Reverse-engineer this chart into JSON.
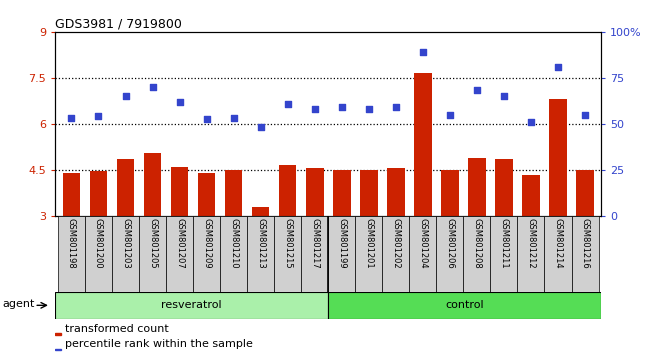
{
  "title": "GDS3981 / 7919800",
  "samples": [
    "GSM801198",
    "GSM801200",
    "GSM801203",
    "GSM801205",
    "GSM801207",
    "GSM801209",
    "GSM801210",
    "GSM801213",
    "GSM801215",
    "GSM801217",
    "GSM801199",
    "GSM801201",
    "GSM801202",
    "GSM801204",
    "GSM801206",
    "GSM801208",
    "GSM801211",
    "GSM801212",
    "GSM801214",
    "GSM801216"
  ],
  "bar_values": [
    4.4,
    4.45,
    4.85,
    5.05,
    4.6,
    4.4,
    4.5,
    3.3,
    4.65,
    4.55,
    4.5,
    4.5,
    4.55,
    7.65,
    4.5,
    4.9,
    4.85,
    4.35,
    6.8,
    4.5
  ],
  "dot_values": [
    6.2,
    6.25,
    6.9,
    7.2,
    6.7,
    6.15,
    6.2,
    5.9,
    6.65,
    6.5,
    6.55,
    6.5,
    6.55,
    8.35,
    6.3,
    7.1,
    6.9,
    6.05,
    7.85,
    6.3
  ],
  "resveratrol_count": 10,
  "control_count": 10,
  "bar_color": "#cc2200",
  "dot_color": "#3344cc",
  "bar_bottom": 3.0,
  "ylim_left": [
    3.0,
    9.0
  ],
  "ylim_right": [
    0,
    100
  ],
  "yticks_left": [
    3.0,
    4.5,
    6.0,
    7.5,
    9.0
  ],
  "yticks_right": [
    0,
    25,
    50,
    75,
    100
  ],
  "ytick_labels_left": [
    "3",
    "4.5",
    "6",
    "7.5",
    "9"
  ],
  "ytick_labels_right": [
    "0",
    "25",
    "50",
    "75",
    "100%"
  ],
  "hlines": [
    4.5,
    6.0,
    7.5
  ],
  "bg_color_axes": "#ffffff",
  "bg_color_fig": "#ffffff",
  "cell_color": "#d0d0d0",
  "resveratrol_label": "resveratrol",
  "control_label": "control",
  "agent_label": "agent",
  "legend_bar": "transformed count",
  "legend_dot": "percentile rank within the sample",
  "resveratrol_color": "#aaf0aa",
  "control_color": "#55dd55"
}
